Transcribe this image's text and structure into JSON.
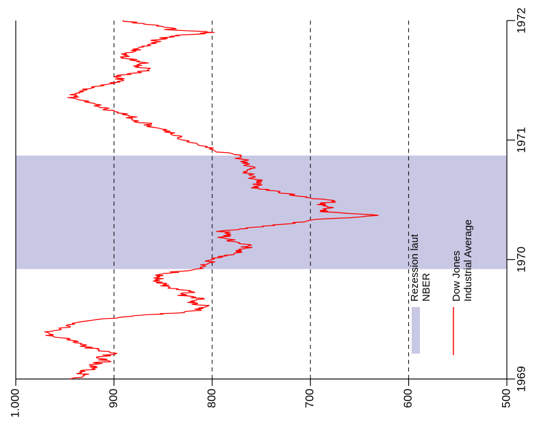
{
  "chart_data": {
    "type": "line",
    "title": "",
    "xlabel": "",
    "ylabel": "",
    "orientation": "rotated 90° counter-clockwise (time axis runs bottom-to-top on the right, value axis left-to-right at the bottom)",
    "xlim": [
      1969.0,
      1972.0
    ],
    "ylim": [
      500,
      1000
    ],
    "grid": "dashed lines at every value tick",
    "x_ticks": [
      {
        "value": 1969,
        "label": "1969"
      },
      {
        "value": 1970,
        "label": "1970"
      },
      {
        "value": 1971,
        "label": "1971"
      },
      {
        "value": 1972,
        "label": "1972"
      }
    ],
    "y_ticks": [
      {
        "value": 500,
        "label": "500"
      },
      {
        "value": 600,
        "label": "600"
      },
      {
        "value": 700,
        "label": "700"
      },
      {
        "value": 800,
        "label": "800"
      },
      {
        "value": 900,
        "label": "900"
      },
      {
        "value": 1000,
        "label": "1.000"
      }
    ],
    "recession": {
      "start": 1969.92,
      "end": 1970.87,
      "color": "#c8c8e4"
    },
    "series": [
      {
        "name": "Dow Jones Industrial Average",
        "color": "#ff0000",
        "points": [
          [
            1969.0,
            945
          ],
          [
            1969.03,
            930
          ],
          [
            1969.06,
            935
          ],
          [
            1969.09,
            920
          ],
          [
            1969.12,
            925
          ],
          [
            1969.15,
            905
          ],
          [
            1969.18,
            918
          ],
          [
            1969.21,
            898
          ],
          [
            1969.24,
            915
          ],
          [
            1969.27,
            928
          ],
          [
            1969.3,
            935
          ],
          [
            1969.33,
            948
          ],
          [
            1969.36,
            962
          ],
          [
            1969.39,
            968
          ],
          [
            1969.42,
            955
          ],
          [
            1969.46,
            940
          ],
          [
            1969.5,
            915
          ],
          [
            1969.53,
            880
          ],
          [
            1969.55,
            840
          ],
          [
            1969.58,
            812
          ],
          [
            1969.61,
            805
          ],
          [
            1969.64,
            825
          ],
          [
            1969.67,
            808
          ],
          [
            1969.7,
            835
          ],
          [
            1969.73,
            820
          ],
          [
            1969.76,
            845
          ],
          [
            1969.79,
            850
          ],
          [
            1969.82,
            860
          ],
          [
            1969.85,
            855
          ],
          [
            1969.88,
            850
          ],
          [
            1969.9,
            835
          ],
          [
            1969.93,
            812
          ],
          [
            1969.96,
            805
          ],
          [
            1970.0,
            800
          ],
          [
            1970.03,
            785
          ],
          [
            1970.06,
            770
          ],
          [
            1970.09,
            768
          ],
          [
            1970.12,
            760
          ],
          [
            1970.15,
            778
          ],
          [
            1970.18,
            788
          ],
          [
            1970.21,
            785
          ],
          [
            1970.24,
            790
          ],
          [
            1970.27,
            758
          ],
          [
            1970.3,
            720
          ],
          [
            1970.33,
            700
          ],
          [
            1970.37,
            631
          ],
          [
            1970.4,
            690
          ],
          [
            1970.43,
            680
          ],
          [
            1970.46,
            693
          ],
          [
            1970.49,
            675
          ],
          [
            1970.52,
            705
          ],
          [
            1970.55,
            720
          ],
          [
            1970.58,
            745
          ],
          [
            1970.61,
            758
          ],
          [
            1970.64,
            750
          ],
          [
            1970.67,
            755
          ],
          [
            1970.7,
            760
          ],
          [
            1970.73,
            765
          ],
          [
            1970.76,
            762
          ],
          [
            1970.8,
            762
          ],
          [
            1970.84,
            770
          ],
          [
            1970.88,
            778
          ],
          [
            1970.92,
            800
          ],
          [
            1970.96,
            815
          ],
          [
            1971.0,
            830
          ],
          [
            1971.04,
            840
          ],
          [
            1971.08,
            850
          ],
          [
            1971.12,
            862
          ],
          [
            1971.16,
            875
          ],
          [
            1971.2,
            885
          ],
          [
            1971.24,
            900
          ],
          [
            1971.28,
            915
          ],
          [
            1971.32,
            930
          ],
          [
            1971.35,
            940
          ],
          [
            1971.38,
            945
          ],
          [
            1971.41,
            935
          ],
          [
            1971.44,
            920
          ],
          [
            1971.47,
            905
          ],
          [
            1971.5,
            890
          ],
          [
            1971.53,
            900
          ],
          [
            1971.56,
            880
          ],
          [
            1971.59,
            865
          ],
          [
            1971.62,
            880
          ],
          [
            1971.65,
            870
          ],
          [
            1971.68,
            885
          ],
          [
            1971.71,
            890
          ],
          [
            1971.74,
            880
          ],
          [
            1971.77,
            875
          ],
          [
            1971.8,
            865
          ],
          [
            1971.83,
            858
          ],
          [
            1971.86,
            845
          ],
          [
            1971.88,
            830
          ],
          [
            1971.9,
            798
          ],
          [
            1971.92,
            840
          ],
          [
            1971.95,
            850
          ],
          [
            1971.98,
            880
          ],
          [
            1972.0,
            890
          ]
        ]
      }
    ],
    "legend": {
      "placement": "bottom-right",
      "entries": [
        {
          "label_lines": [
            "Rezession laut",
            "NBER"
          ],
          "kind": "box",
          "color": "#c8c8e4"
        },
        {
          "label_lines": [
            "Dow Jones",
            "Industrial Average"
          ],
          "kind": "line",
          "color": "#ff0000"
        }
      ]
    }
  }
}
